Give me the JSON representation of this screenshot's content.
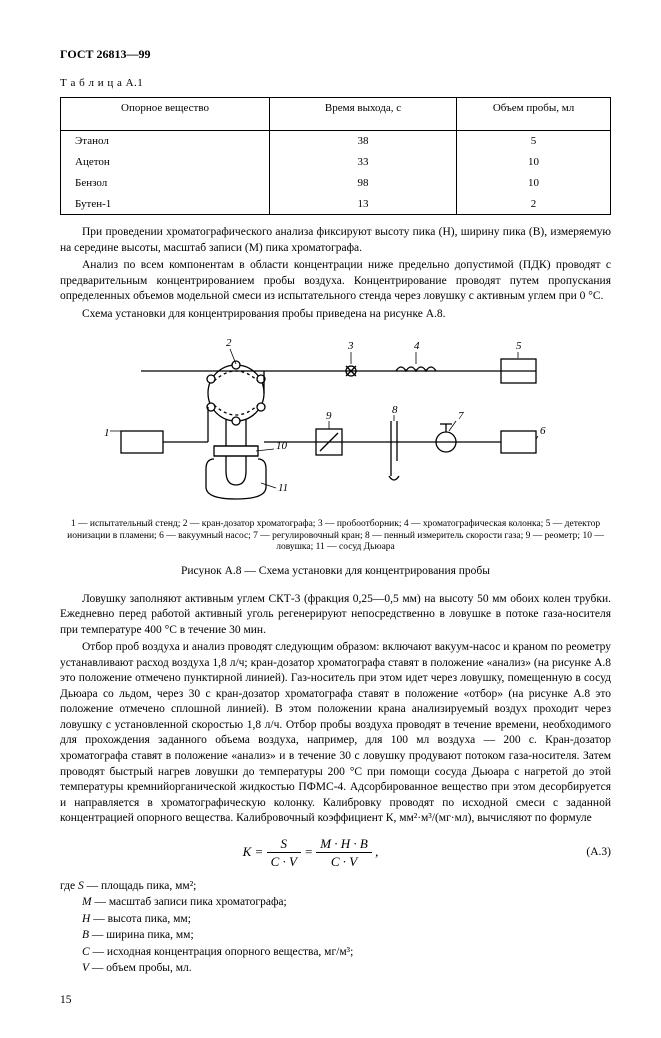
{
  "header": {
    "code": "ГОСТ 26813—99"
  },
  "table": {
    "label": "Т а б л и ц а  А.1",
    "columns": [
      "Опорное вещество",
      "Время выхода, с",
      "Объем пробы, мл"
    ],
    "colWidths": [
      "38%",
      "34%",
      "28%"
    ],
    "rows": [
      [
        "Этанол",
        "38",
        "5"
      ],
      [
        "Ацетон",
        "33",
        "10"
      ],
      [
        "Бензол",
        "98",
        "10"
      ],
      [
        "Бутен-1",
        "13",
        "2"
      ]
    ]
  },
  "para1": "При проведении хроматографического анализа фиксируют высоту пика (Н), ширину пика (В), измеряемую на середине высоты, масштаб записи (М) пика хроматографа.",
  "para2": "Анализ по всем компонентам в области концентрации ниже предельно допустимой (ПДК) проводят с предварительным концентрированием пробы воздуха. Концентрирование проводят путем пропускания определенных объемов модельной смеси из испытательного стенда через ловушку с активным углем при 0 °С.",
  "para3": "Схема установки для концентрирования пробы приведена на рисунке А.8.",
  "figure": {
    "labels": {
      "l1": "1",
      "l2": "2",
      "l3": "3",
      "l4": "4",
      "l5": "5",
      "l6": "6",
      "l7": "7",
      "l8": "8",
      "l9": "9",
      "l10": "10",
      "l11": "11"
    },
    "caption_small": "1 — испытательный стенд; 2 — кран-дозатор хроматографа; 3 — пробоотборник; 4 — хроматографическая колонка; 5 — детектор ионизации в пламени; 6 — вакуумный насос; 7 — регулировочный кран; 8 — пенный измеритель скорости газа; 9 — реометр; 10 — ловушка; 11 — сосуд Дьюара",
    "title": "Рисунок А.8 — Схема установки для концентрирования пробы"
  },
  "para4": "Ловушку заполняют активным углем СКТ-3 (фракция 0,25—0,5 мм) на высоту 50 мм обоих колен трубки. Ежедневно перед работой активный уголь регенерируют непосредственно в ловушке в потоке газа-носителя при температуре 400 °С в течение 30 мин.",
  "para5": "Отбор проб воздуха и анализ проводят следующим образом: включают вакуум-насос и краном по реометру устанавливают расход воздуха 1,8 л/ч; кран-дозатор хроматографа ставят в положение «анализ» (на рисунке А.8 это положение отмечено пунктирной линией). Газ-носитель при этом идет через ловушку, помещенную в сосуд Дьюара со льдом, через 30 с кран-дозатор хроматографа ставят в положение «отбор» (на рисунке А.8 это положение отмечено сплошной линией). В этом положении крана анализируемый воздух проходит через ловушку с установленной скоростью 1,8 л/ч. Отбор пробы воздуха проводят в течение времени, необходимого для прохождения заданного объема воздуха, например, для 100 мл воздуха — 200 с. Кран-дозатор хроматографа ставят в положение «анализ» и в течение 30 с ловушку продувают потоком газа-носителя. Затем проводят быстрый нагрев ловушки до температуры 200 °С при помощи сосуда Дьюара с нагретой до этой температуры кремнийорганической жидкостью ПФМС-4. Адсорбированное вещество при этом десорбируется и направляется в хроматографическую колонку. Калибровку проводят по исходной смеси с заданной концентрацией опорного вещества. Калибровочный коэффициент К, мм²·м³/(мг·мл), вычисляют по формуле",
  "formula": {
    "lhs": "K",
    "frac1_num": "S",
    "frac1_den": "C · V",
    "frac2_num": "M · H · B",
    "frac2_den": "C · V",
    "number": "(А.3)"
  },
  "where_intro": "где",
  "where": [
    {
      "sym": "S",
      "txt": " — площадь пика, мм²;"
    },
    {
      "sym": "M",
      "txt": " — масштаб записи пика хроматографа;"
    },
    {
      "sym": "H",
      "txt": " — высота пика, мм;"
    },
    {
      "sym": "B",
      "txt": " — ширина пика, мм;"
    },
    {
      "sym": "C",
      "txt": " — исходная концентрация опорного вещества, мг/м³;"
    },
    {
      "sym": "V",
      "txt": " — объем пробы, мл."
    }
  ],
  "page_number": "15"
}
